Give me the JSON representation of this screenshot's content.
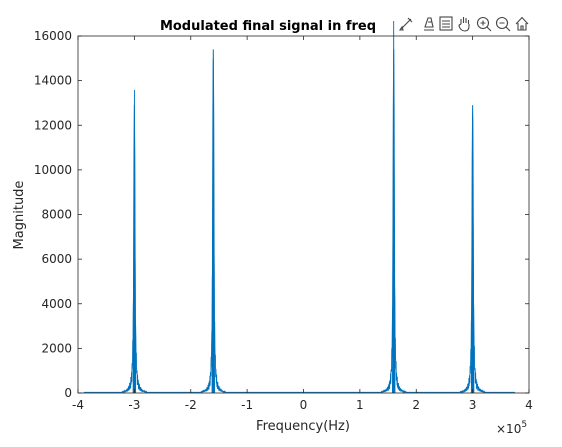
{
  "chart_data": {
    "type": "line",
    "title": "Modulated final signal in freq",
    "xlabel": "Frequency(Hz)",
    "ylabel": "Magnitude",
    "x_exponent_label": "×10",
    "x_exponent_power": "5",
    "xlim": [
      -4,
      4
    ],
    "ylim": [
      0,
      16000
    ],
    "xticks": [
      "-4",
      "-3",
      "-2",
      "-1",
      "0",
      "1",
      "2",
      "3",
      "4"
    ],
    "yticks": [
      "0",
      "2000",
      "4000",
      "6000",
      "8000",
      "10000",
      "12000",
      "14000",
      "16000"
    ],
    "grid": false,
    "series_color": "#0072BD",
    "peaks": [
      {
        "x": -3.0,
        "y": 12900
      },
      {
        "x": -1.6,
        "y": 15400
      },
      {
        "x": 1.6,
        "y": 15400
      },
      {
        "x": 3.0,
        "y": 12900
      }
    ]
  },
  "toolbar": {
    "icons": [
      "brush-icon",
      "data-tip-icon",
      "legend-icon",
      "pan-icon",
      "zoom-in-icon",
      "zoom-out-icon",
      "home-icon"
    ]
  }
}
